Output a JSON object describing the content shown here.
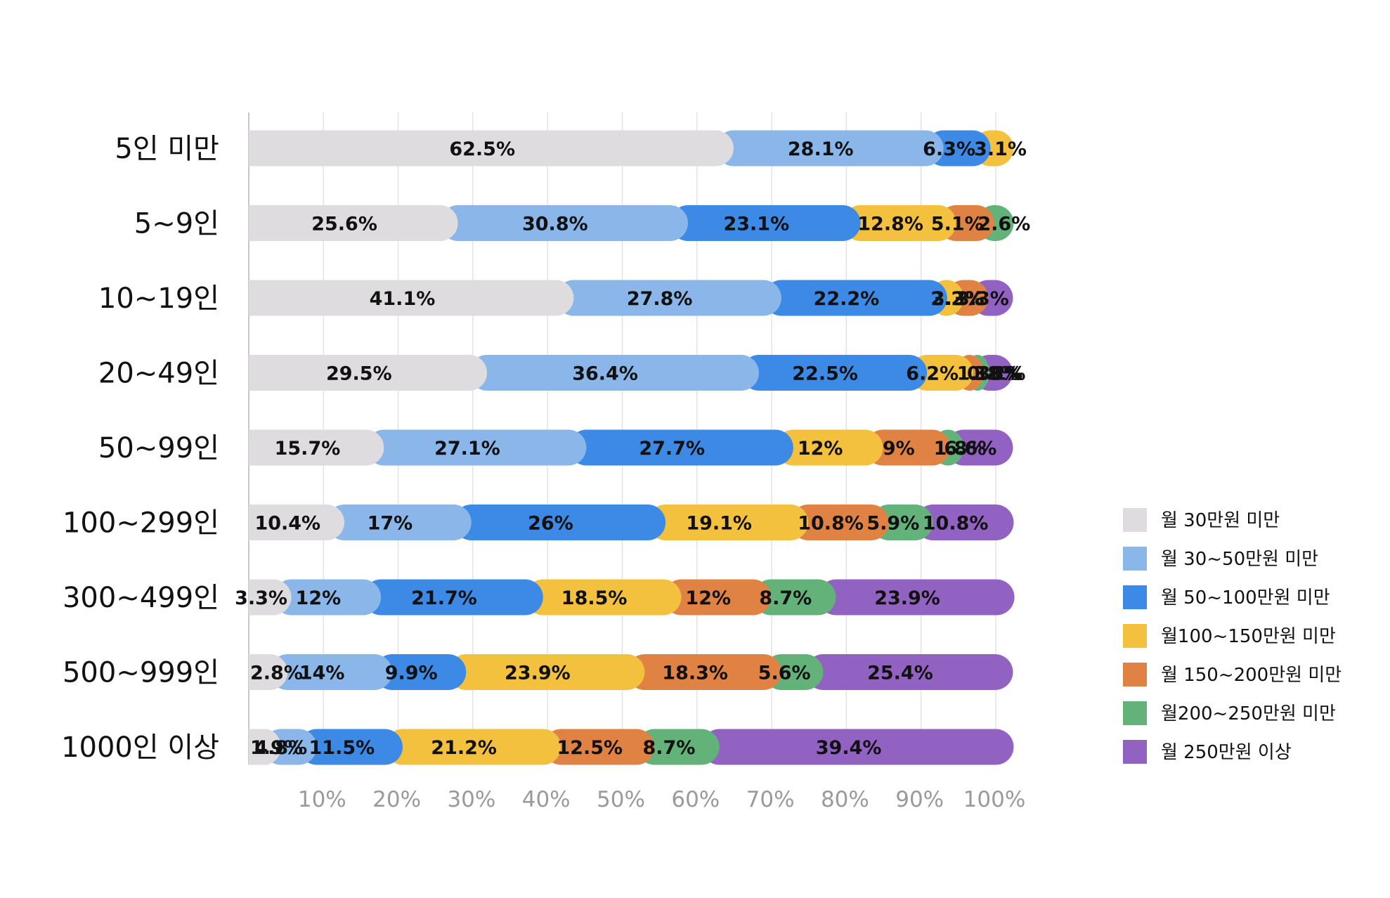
{
  "chart_data": {
    "type": "bar",
    "orientation": "horizontal",
    "stacked": true,
    "normalized_percent": true,
    "title": "",
    "xlabel": "",
    "ylabel": "",
    "xlim": [
      0,
      100
    ],
    "x_ticks": [
      "10%",
      "20%",
      "30%",
      "40%",
      "50%",
      "60%",
      "70%",
      "80%",
      "90%",
      "100%"
    ],
    "grid": true,
    "legend_position": "right",
    "categories": [
      "5인 미만",
      "5~9인",
      "10~19인",
      "20~49인",
      "50~99인",
      "100~299인",
      "300~499인",
      "500~999인",
      "1000인 이상"
    ],
    "series": [
      {
        "name": "월 30만원 미만",
        "color": "#dedcde",
        "values": [
          62.5,
          25.6,
          41.1,
          29.5,
          15.7,
          10.4,
          3.3,
          2.8,
          1.9
        ],
        "labels": [
          "62.5%",
          "25.6%",
          "41.1%",
          "29.5%",
          "15.7%",
          "10.4%",
          "3.3%",
          "2.8%",
          "1.9%"
        ]
      },
      {
        "name": "월 30~50만원 미만",
        "color": "#8ab6ea",
        "values": [
          28.1,
          30.8,
          27.8,
          36.4,
          27.1,
          17,
          12,
          14,
          4.8
        ],
        "labels": [
          "28.1%",
          "30.8%",
          "27.8%",
          "36.4%",
          "27.1%",
          "17%",
          "12%",
          "14%",
          "4.8%"
        ]
      },
      {
        "name": "월 50~100만원 미만",
        "color": "#3d8ae6",
        "values": [
          6.3,
          23.1,
          22.2,
          22.5,
          27.7,
          26,
          21.7,
          9.9,
          11.5
        ],
        "labels": [
          "6.3%",
          "23.1%",
          "22.2%",
          "22.5%",
          "27.7%",
          "26%",
          "21.7%",
          "9.9%",
          "11.5%"
        ]
      },
      {
        "name": "월100~150만원 미만",
        "color": "#f4c13f",
        "values": [
          3.1,
          12.8,
          2.2,
          6.2,
          12,
          19.1,
          18.5,
          23.9,
          21.2
        ],
        "labels": [
          "3.1%",
          "12.8%",
          "2.2%",
          "6.2%",
          "12%",
          "19.1%",
          "18.5%",
          "23.9%",
          "21.2%"
        ]
      },
      {
        "name": "월 150~200만원 미만",
        "color": "#e08244",
        "values": [
          0,
          5.1,
          3.3,
          1.36,
          9,
          10.8,
          12,
          18.3,
          12.5
        ],
        "labels": [
          "",
          "5.1%",
          "3.3%",
          "1.36%",
          "9%",
          "10.8%",
          "12%",
          "18.3%",
          "12.5%"
        ]
      },
      {
        "name": "월200~250만원 미만",
        "color": "#63b27a",
        "values": [
          0,
          2.6,
          0,
          0.8,
          1.8,
          5.9,
          8.7,
          5.6,
          8.7
        ],
        "labels": [
          "",
          "2.6%",
          "",
          "0.8%",
          "1.8%",
          "5.9%",
          "8.7%",
          "5.6%",
          "8.7%"
        ]
      },
      {
        "name": "월 250만원 이상",
        "color": "#9262c2",
        "values": [
          0,
          0,
          3.3,
          3.1,
          6.6,
          10.8,
          23.9,
          25.4,
          39.4
        ],
        "labels": [
          "",
          "",
          "3.3%",
          "3.1%",
          "6.6%",
          "10.8%",
          "23.9%",
          "25.4%",
          "39.4%"
        ]
      }
    ]
  }
}
